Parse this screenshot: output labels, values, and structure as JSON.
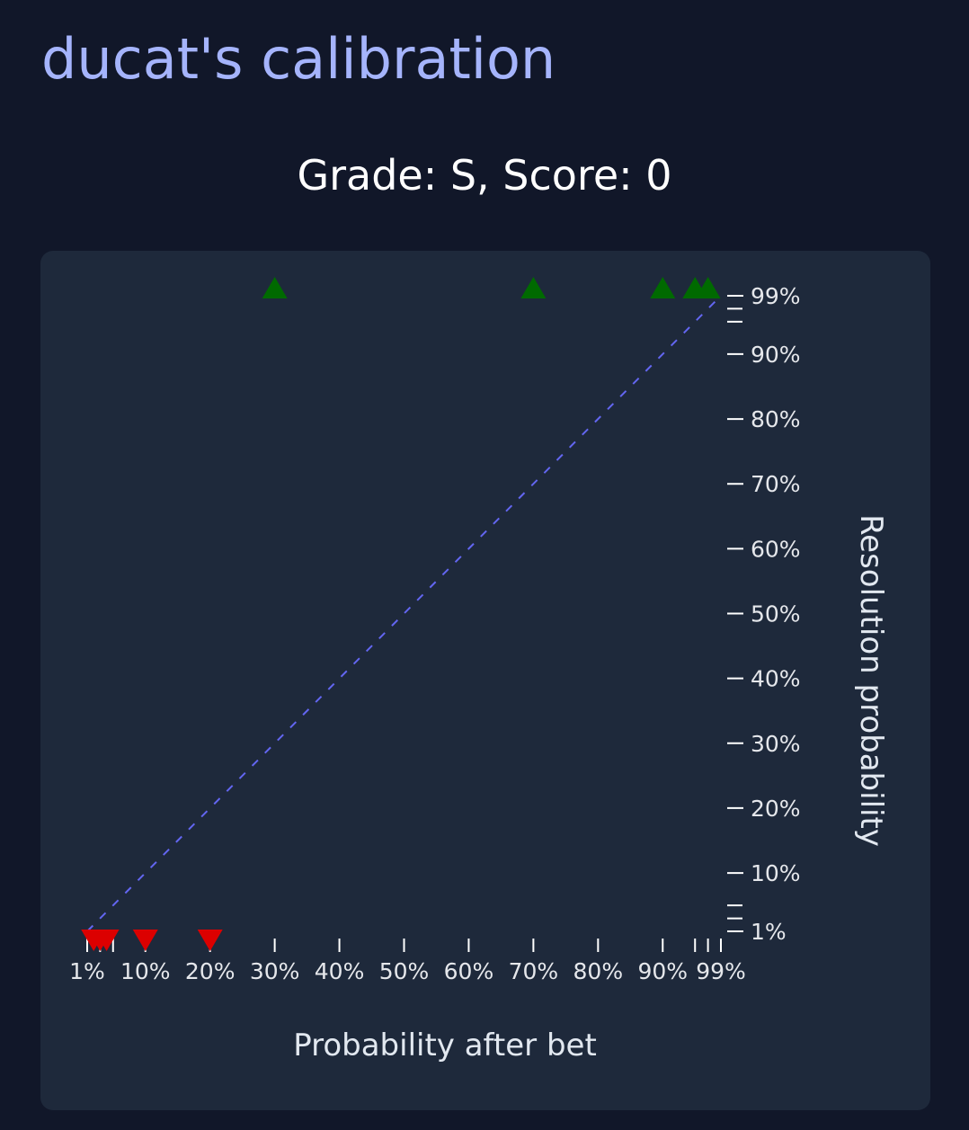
{
  "page": {
    "title": "ducat's calibration",
    "grade_line": "Grade: S, Score: 0"
  },
  "colors": {
    "background": "#111729",
    "card": "#1e293b",
    "title": "#a5b4fc",
    "diagonal": "#6366f1",
    "yes_marker": "#006a00",
    "no_marker": "#dc0000",
    "tick": "#ffffff"
  },
  "chart_data": {
    "type": "scatter",
    "title": "Grade: S, Score: 0",
    "xlabel": "Probability after bet",
    "ylabel": "Resolution probability",
    "x_ticks": [
      1,
      3,
      5,
      10,
      20,
      30,
      40,
      50,
      60,
      70,
      80,
      90,
      95,
      97,
      99
    ],
    "x_tick_labels": [
      "1%",
      "10%",
      "20%",
      "30%",
      "40%",
      "50%",
      "60%",
      "70%",
      "80%",
      "90%",
      "99%"
    ],
    "y_ticks": [
      1,
      3,
      5,
      10,
      20,
      30,
      40,
      50,
      60,
      70,
      80,
      90,
      95,
      97,
      99
    ],
    "y_tick_labels": [
      "1%",
      "10%",
      "20%",
      "30%",
      "40%",
      "50%",
      "60%",
      "70%",
      "80%",
      "90%",
      "99%"
    ],
    "diagonal": {
      "style": "dashed",
      "from": 1,
      "to": 99
    },
    "series": [
      {
        "marker": "triangle-up",
        "resolution": 100,
        "x": [
          30,
          70,
          90,
          95,
          97
        ]
      },
      {
        "marker": "triangle-down",
        "resolution": 0,
        "x": [
          2,
          3,
          4,
          10,
          20
        ]
      }
    ]
  }
}
